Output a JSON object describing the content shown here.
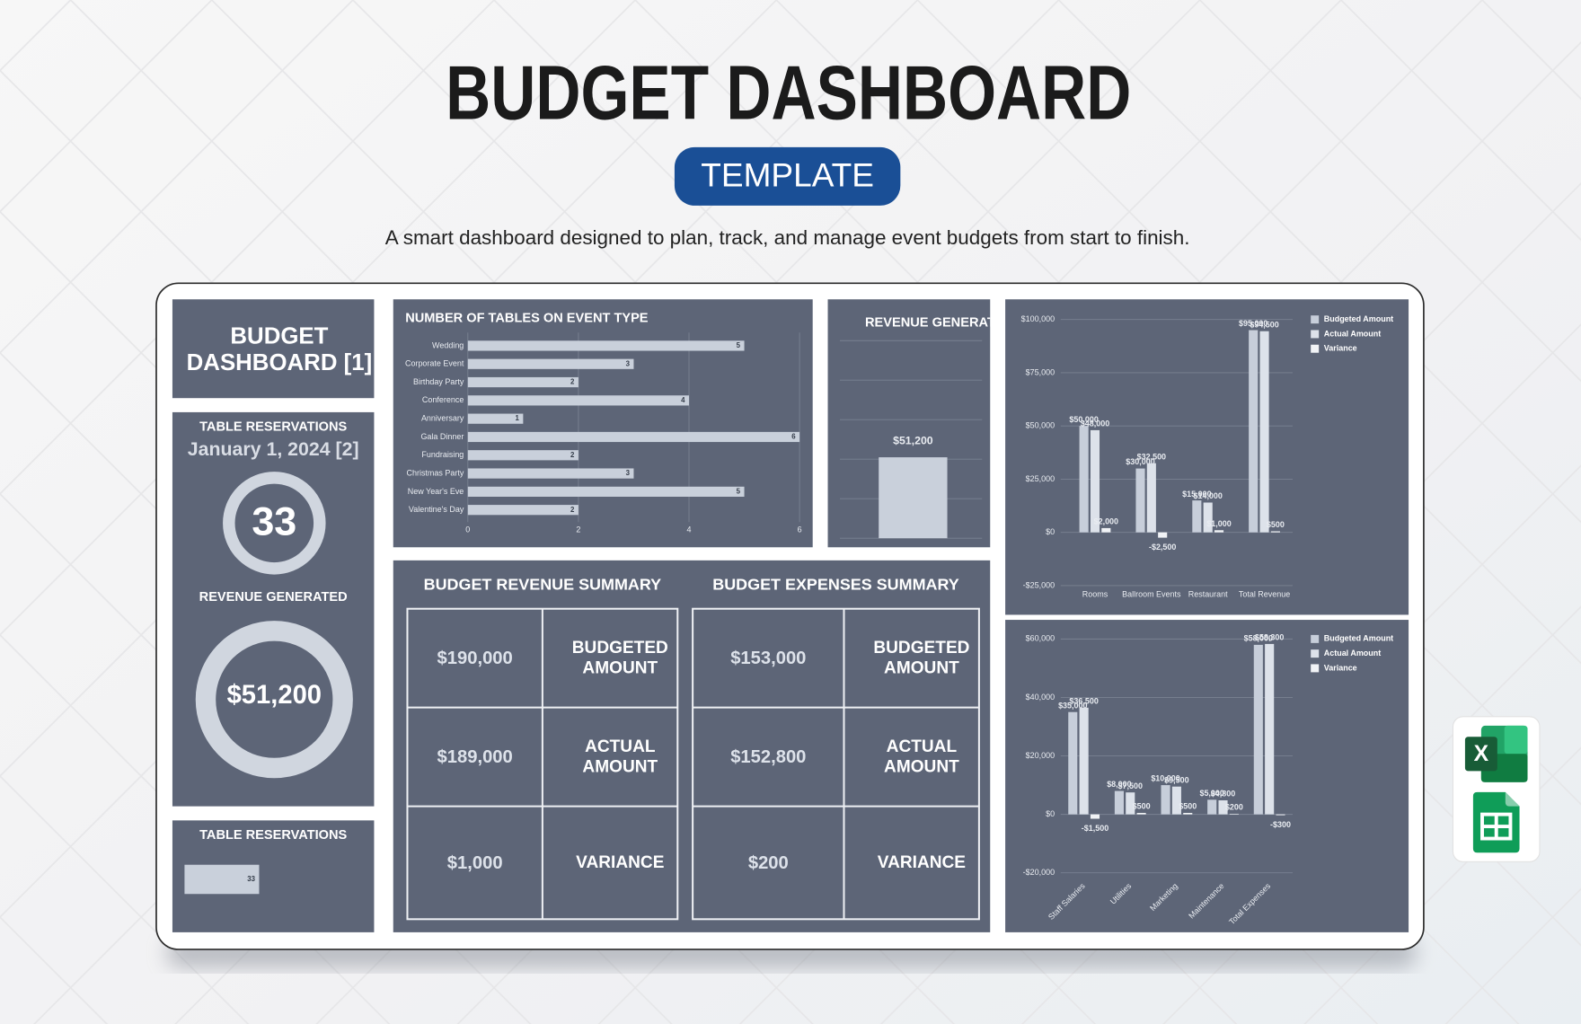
{
  "header": {
    "title": "BUDGET DASHBOARD",
    "badge": "TEMPLATE",
    "subtitle": "A smart dashboard designed to plan, track, and manage event budgets from start to finish."
  },
  "sidebar": {
    "title": "BUDGET DASHBOARD [1]",
    "reservations_label": "TABLE RESERVATIONS",
    "date": "January 1, 2024 [2]",
    "reservations": 33,
    "revenue_label": "REVENUE GENERATED",
    "revenue": "$51,200"
  },
  "revenue_summary": {
    "title": "BUDGET REVENUE SUMMARY",
    "rows": [
      [
        "$190,000",
        "BUDGETED AMOUNT"
      ],
      [
        "$189,000",
        "ACTUAL AMOUNT"
      ],
      [
        "$1,000",
        "VARIANCE"
      ]
    ]
  },
  "expenses_summary": {
    "title": "BUDGET EXPENSES SUMMARY",
    "rows": [
      [
        "$153,000",
        "BUDGETED AMOUNT"
      ],
      [
        "$152,800",
        "ACTUAL AMOUNT"
      ],
      [
        "$200",
        "VARIANCE"
      ]
    ]
  },
  "icons": {
    "excel": "X"
  },
  "chart_data": [
    {
      "type": "bar",
      "orientation": "horizontal",
      "title": "NUMBER OF TABLES ON EVENT TYPE",
      "categories": [
        "Wedding",
        "Corporate Event",
        "Birthday Party",
        "Conference",
        "Anniversary",
        "Gala Dinner",
        "Fundraising",
        "Christmas Party",
        "New Year's Eve",
        "Valentine's Day"
      ],
      "values": [
        5,
        3,
        2,
        4,
        1,
        6,
        2,
        3,
        5,
        2
      ],
      "color": "#c9d0db",
      "xlim": [
        0,
        6
      ],
      "xticks": [
        0,
        2,
        4,
        6
      ],
      "grid": true
    },
    {
      "type": "bar",
      "title": "REVENUE GENERATED",
      "values": [
        51200
      ],
      "value_labels": [
        "$51,200"
      ],
      "color": "#c9d0db",
      "ylim": [
        0,
        125000
      ],
      "yticks": [
        0,
        25000,
        50000,
        75000,
        100000,
        125000
      ],
      "grid": true,
      "tick_labels": false
    },
    {
      "type": "bar",
      "categories": [
        "Rooms",
        "Ballroom Events",
        "Restaurant",
        "Total Revenue"
      ],
      "series": [
        {
          "name": "Budgeted Amount",
          "color": "#c7ceda",
          "values": [
            50000,
            30000,
            15000,
            95000
          ],
          "value_labels": [
            "$50,000",
            "$30,000",
            "$15,000",
            "$95,000"
          ]
        },
        {
          "name": "Actual Amount",
          "color": "#dde2ea",
          "values": [
            48000,
            32500,
            14000,
            94500
          ],
          "value_labels": [
            "$48,000",
            "$32,500",
            "$14,000",
            "$94,500"
          ]
        },
        {
          "name": "Variance",
          "color": "#f1f3f6",
          "values": [
            2000,
            -2500,
            1000,
            500
          ],
          "value_labels": [
            "$2,000",
            "-$2,500",
            "$1,000",
            "$500"
          ]
        }
      ],
      "ylim": [
        -25000,
        100000
      ],
      "yticks": [
        {
          "value": -25000,
          "label": "-$25,000"
        },
        {
          "value": 0,
          "label": "$0"
        },
        {
          "value": 25000,
          "label": "$25,000"
        },
        {
          "value": 50000,
          "label": "$50,000"
        },
        {
          "value": 75000,
          "label": "$75,000"
        },
        {
          "value": 100000,
          "label": "$100,000"
        }
      ],
      "grid": true,
      "legend": "right"
    },
    {
      "type": "bar",
      "categories": [
        "Staff Salaries",
        "Utilities",
        "Marketing",
        "Maintenance",
        "Total Expenses"
      ],
      "series": [
        {
          "name": "Budgeted Amount",
          "color": "#c7ceda",
          "values": [
            35000,
            8000,
            10000,
            5000,
            58000
          ],
          "value_labels": [
            "$35,000",
            "$8,000",
            "$10,000",
            "$5,000",
            "$58,000"
          ]
        },
        {
          "name": "Actual Amount",
          "color": "#dde2ea",
          "values": [
            36500,
            7500,
            9500,
            4800,
            58300
          ],
          "value_labels": [
            "$36,500",
            "$7,500",
            "$9,500",
            "$4,800",
            "$58,300"
          ]
        },
        {
          "name": "Variance",
          "color": "#f1f3f6",
          "values": [
            -1500,
            500,
            500,
            200,
            -300
          ],
          "value_labels": [
            "-$1,500",
            "$500",
            "$500",
            "$200",
            "-$300"
          ]
        }
      ],
      "ylim": [
        -20000,
        60000
      ],
      "yticks": [
        {
          "value": -20000,
          "label": "-$20,000"
        },
        {
          "value": 0,
          "label": "$0"
        },
        {
          "value": 20000,
          "label": "$20,000"
        },
        {
          "value": 40000,
          "label": "$40,000"
        },
        {
          "value": 60000,
          "label": "$60,000"
        }
      ],
      "grid": true,
      "legend": "right",
      "xtick_rotation": -45
    },
    {
      "type": "bar",
      "orientation": "horizontal",
      "title": "TABLE RESERVATIONS",
      "values": [
        33
      ],
      "color": "#c9d0db"
    }
  ]
}
